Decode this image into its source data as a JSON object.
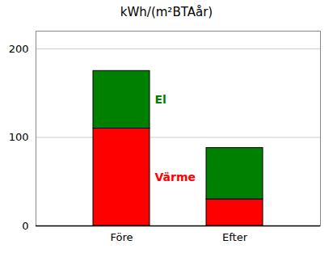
{
  "chart_data": {
    "type": "bar",
    "stacked": true,
    "title": "kWh/(m²BTAår)",
    "categories": [
      "Före",
      "Efter"
    ],
    "series": [
      {
        "name": "Värme",
        "color": "#ff0000",
        "values": [
          110,
          30
        ]
      },
      {
        "name": "El",
        "color": "#008000",
        "values": [
          65,
          58
        ]
      }
    ],
    "ylim": [
      0,
      220
    ],
    "yticks": [
      0,
      100,
      200
    ],
    "grid": true
  }
}
